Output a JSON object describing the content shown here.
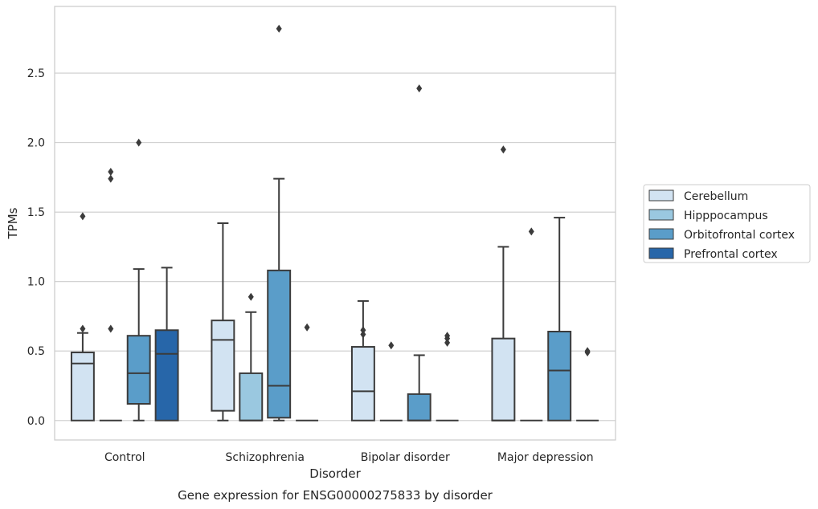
{
  "chart_data": {
    "type": "boxplot",
    "title": "Gene expression for ENSG00000275833 by disorder",
    "xlabel": "Disorder",
    "ylabel": "TPMs",
    "ylim": [
      -0.14,
      2.98
    ],
    "yticks": [
      0.0,
      0.5,
      1.0,
      1.5,
      2.0,
      2.5
    ],
    "ytick_labels": [
      "0.0",
      "0.5",
      "1.0",
      "1.5",
      "2.0",
      "2.5"
    ],
    "grid": true,
    "legend_position": "right",
    "categories": [
      "Control",
      "Schizophrenia",
      "Bipolar disorder",
      "Major depression"
    ],
    "series": [
      {
        "name": "Cerebellum",
        "color": "#d2e3f2",
        "boxes": [
          {
            "q1": 0.0,
            "median": 0.41,
            "q3": 0.49,
            "whislo": 0.0,
            "whishi": 0.63,
            "fliers": [
              1.47,
              0.66
            ]
          },
          {
            "q1": 0.07,
            "median": 0.58,
            "q3": 0.72,
            "whislo": 0.0,
            "whishi": 1.42,
            "fliers": []
          },
          {
            "q1": 0.0,
            "median": 0.21,
            "q3": 0.53,
            "whislo": 0.0,
            "whishi": 0.86,
            "fliers": [
              0.65,
              0.62
            ]
          },
          {
            "q1": 0.0,
            "median": 0.0,
            "q3": 0.59,
            "whislo": 0.0,
            "whishi": 1.25,
            "fliers": [
              1.95
            ]
          }
        ]
      },
      {
        "name": "Hipppocampus",
        "color": "#9ac8e0",
        "boxes": [
          {
            "q1": 0.0,
            "median": 0.0,
            "q3": 0.0,
            "whislo": 0.0,
            "whishi": 0.0,
            "fliers": [
              1.79,
              1.74,
              0.66
            ]
          },
          {
            "q1": 0.0,
            "median": 0.0,
            "q3": 0.34,
            "whislo": 0.0,
            "whishi": 0.78,
            "fliers": [
              0.89
            ]
          },
          {
            "q1": 0.0,
            "median": 0.0,
            "q3": 0.0,
            "whislo": 0.0,
            "whishi": 0.0,
            "fliers": [
              0.54
            ]
          },
          {
            "q1": 0.0,
            "median": 0.0,
            "q3": 0.0,
            "whislo": 0.0,
            "whishi": 0.0,
            "fliers": [
              1.36
            ]
          }
        ]
      },
      {
        "name": "Orbitofrontal cortex",
        "color": "#5a9dc9",
        "boxes": [
          {
            "q1": 0.12,
            "median": 0.34,
            "q3": 0.61,
            "whislo": 0.0,
            "whishi": 1.09,
            "fliers": [
              2.0
            ]
          },
          {
            "q1": 0.02,
            "median": 0.25,
            "q3": 1.08,
            "whislo": 0.0,
            "whishi": 1.74,
            "fliers": [
              2.82
            ]
          },
          {
            "q1": 0.0,
            "median": 0.0,
            "q3": 0.19,
            "whislo": 0.0,
            "whishi": 0.47,
            "fliers": [
              2.39
            ]
          },
          {
            "q1": 0.0,
            "median": 0.36,
            "q3": 0.64,
            "whislo": 0.0,
            "whishi": 1.46,
            "fliers": []
          }
        ]
      },
      {
        "name": "Prefrontal cortex",
        "color": "#2766a9",
        "boxes": [
          {
            "q1": 0.0,
            "median": 0.48,
            "q3": 0.65,
            "whislo": 0.0,
            "whishi": 1.1,
            "fliers": []
          },
          {
            "q1": 0.0,
            "median": 0.0,
            "q3": 0.0,
            "whislo": 0.0,
            "whishi": 0.0,
            "fliers": [
              0.67
            ]
          },
          {
            "q1": 0.0,
            "median": 0.0,
            "q3": 0.0,
            "whislo": 0.0,
            "whishi": 0.0,
            "fliers": [
              0.61,
              0.59,
              0.56
            ]
          },
          {
            "q1": 0.0,
            "median": 0.0,
            "q3": 0.0,
            "whislo": 0.0,
            "whishi": 0.0,
            "fliers": [
              0.5,
              0.49
            ]
          }
        ]
      }
    ]
  }
}
